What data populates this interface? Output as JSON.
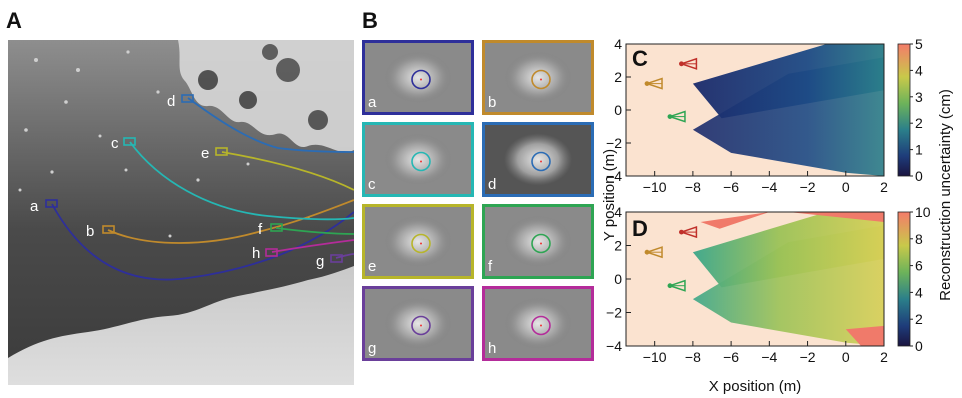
{
  "figure": {
    "panels": {
      "A": {
        "letter": "A"
      },
      "B": {
        "letter": "B"
      },
      "C": {
        "letter": "C"
      },
      "D": {
        "letter": "D"
      }
    },
    "trajectory_labels": [
      "a",
      "b",
      "c",
      "d",
      "e",
      "f",
      "g",
      "h"
    ],
    "trajectory_colors": {
      "a": "#2e2f9a",
      "b": "#c08a2c",
      "c": "#25b7b4",
      "d": "#2b6cb5",
      "e": "#b7b52a",
      "f": "#2ea553",
      "g": "#6a3f9a",
      "h": "#b42c9a"
    },
    "thumbnails": [
      {
        "label": "a",
        "color": "#2e2f9a"
      },
      {
        "label": "b",
        "color": "#c08a2c"
      },
      {
        "label": "c",
        "color": "#25b7b4"
      },
      {
        "label": "d",
        "color": "#2b6cb5"
      },
      {
        "label": "e",
        "color": "#b7b52a"
      },
      {
        "label": "f",
        "color": "#2ea553"
      },
      {
        "label": "g",
        "color": "#6a3f9a"
      },
      {
        "label": "h",
        "color": "#b42c9a"
      }
    ]
  },
  "chart_data": [
    {
      "type": "heatmap",
      "panel": "C",
      "title": "",
      "xlabel": "X position (m)",
      "ylabel": "Y position (m)",
      "xlim": [
        -11.5,
        2
      ],
      "ylim": [
        -4,
        4
      ],
      "xticks": [
        -10,
        -8,
        -6,
        -4,
        -2,
        0,
        2
      ],
      "yticks": [
        -4,
        -2,
        0,
        2,
        4
      ],
      "xtick_labels": [
        "−10",
        "−8",
        "−6",
        "−4",
        "−2",
        "0",
        "2"
      ],
      "ytick_labels": [
        "−4",
        "−2",
        "0",
        "2",
        "4"
      ],
      "colorbar": {
        "label": "Reconstruction uncertainty (cm)",
        "min": 0,
        "max": 5,
        "ticks": [
          0,
          1,
          2,
          3,
          4,
          5
        ],
        "tick_labels": [
          "0",
          "1",
          "2",
          "3",
          "4",
          "5"
        ]
      },
      "cameras": [
        {
          "x": -8.6,
          "y": 2.8,
          "color": "#c0302a"
        },
        {
          "x": -10.4,
          "y": 1.6,
          "color": "#c08a2c"
        },
        {
          "x": -9.2,
          "y": -0.4,
          "color": "#2ea553"
        }
      ]
    },
    {
      "type": "heatmap",
      "panel": "D",
      "title": "",
      "xlabel": "X position (m)",
      "ylabel": "Y position (m)",
      "xlim": [
        -11.5,
        2
      ],
      "ylim": [
        -4,
        4
      ],
      "xticks": [
        -10,
        -8,
        -6,
        -4,
        -2,
        0,
        2
      ],
      "yticks": [
        -4,
        -2,
        0,
        2,
        4
      ],
      "xtick_labels": [
        "−10",
        "−8",
        "−6",
        "−4",
        "−2",
        "0",
        "2"
      ],
      "ytick_labels": [
        "−4",
        "−2",
        "0",
        "2",
        "4"
      ],
      "colorbar": {
        "label": "Reconstruction uncertainty (cm)",
        "min": 0,
        "max": 10,
        "ticks": [
          0,
          2,
          4,
          6,
          8,
          10
        ],
        "tick_labels": [
          "0",
          "2",
          "4",
          "6",
          "8",
          "10"
        ]
      },
      "cameras": [
        {
          "x": -8.6,
          "y": 2.8,
          "color": "#c0302a"
        },
        {
          "x": -10.4,
          "y": 1.6,
          "color": "#c08a2c"
        },
        {
          "x": -9.2,
          "y": -0.4,
          "color": "#2ea553"
        }
      ]
    }
  ]
}
